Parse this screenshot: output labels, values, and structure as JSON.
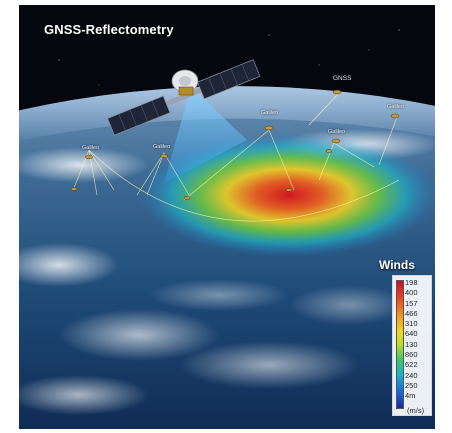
{
  "scene": {
    "title": "GNSS-Reflectometry",
    "labels": {
      "gnss": "GNSS",
      "galileo_top_center": "Galileo",
      "galileo_top_right": "Galileo",
      "galileo_mid_right": "Galileo",
      "galileo_left": "Galileo",
      "galileo_left_center": "Galileo"
    }
  },
  "legend": {
    "title": "Winds",
    "ticks": [
      "198",
      "400",
      "157",
      "466",
      "310",
      "640",
      "130",
      "860",
      "622",
      "240",
      "250",
      "4m"
    ],
    "unit": "(m/s)",
    "colors": [
      "#c8102e",
      "#f39a1a",
      "#f0d81e",
      "#3cc86a",
      "#18b4c8",
      "#1a2aa0"
    ]
  }
}
